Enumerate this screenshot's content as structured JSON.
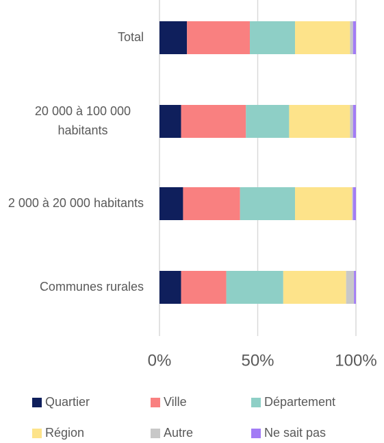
{
  "chart_data": {
    "type": "stacked-barh",
    "categories": [
      "Total",
      "20 000 à 100 000 habitants",
      "2 000 à 20 000 habitants",
      "Communes rurales"
    ],
    "series": [
      {
        "name": "Quartier",
        "color": "#0f1f5c",
        "values": [
          14,
          11,
          12,
          11
        ]
      },
      {
        "name": "Ville",
        "color": "#f98080",
        "values": [
          32,
          33,
          29,
          23
        ]
      },
      {
        "name": "Département",
        "color": "#8ecfc6",
        "values": [
          23,
          22,
          28,
          29
        ]
      },
      {
        "name": "Région",
        "color": "#fde38a",
        "values": [
          28,
          31,
          29,
          32
        ]
      },
      {
        "name": "Autre",
        "color": "#c8c8c8",
        "values": [
          1.5,
          1.5,
          0.5,
          4
        ]
      },
      {
        "name": "Ne sait pas",
        "color": "#a27cf5",
        "values": [
          1.5,
          1.5,
          1.5,
          1
        ]
      }
    ],
    "xlim": [
      0,
      100
    ],
    "xticks": [
      {
        "value": 0,
        "label": "0%"
      },
      {
        "value": 50,
        "label": "50%"
      },
      {
        "value": 100,
        "label": "100%"
      }
    ],
    "grid": true,
    "legend": "bottom"
  }
}
